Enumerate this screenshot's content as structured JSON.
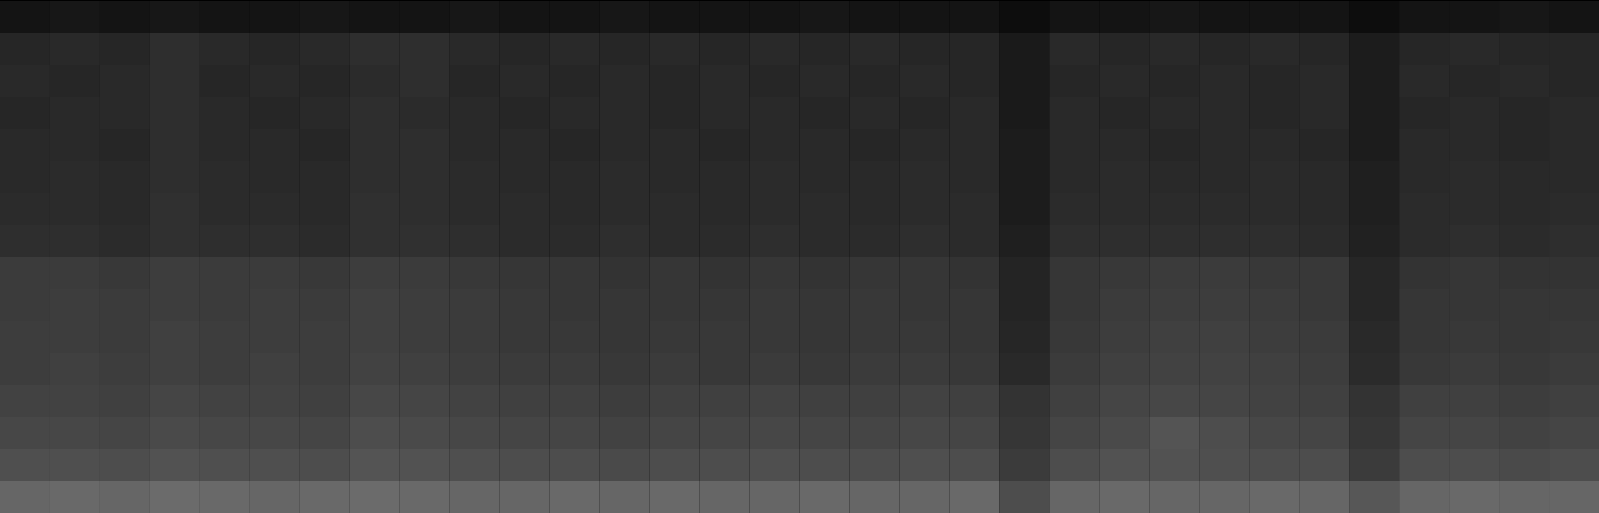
{
  "chart_data": {
    "type": "heatmap",
    "tick_labels": false,
    "zlim": [
      0,
      1
    ],
    "z": [
      [
        0.08,
        0.09,
        0.08,
        0.09,
        0.08,
        0.08,
        0.09,
        0.08,
        0.08,
        0.09,
        0.08,
        0.08,
        0.09,
        0.08,
        0.08,
        0.08,
        0.09,
        0.08,
        0.08,
        0.08,
        0.05,
        0.08,
        0.08,
        0.09,
        0.08,
        0.08,
        0.08,
        0.05,
        0.08,
        0.08,
        0.09,
        0.08
      ],
      [
        0.15,
        0.16,
        0.15,
        0.18,
        0.16,
        0.15,
        0.16,
        0.18,
        0.18,
        0.16,
        0.15,
        0.16,
        0.15,
        0.16,
        0.15,
        0.16,
        0.15,
        0.16,
        0.15,
        0.15,
        0.1,
        0.16,
        0.15,
        0.16,
        0.15,
        0.16,
        0.15,
        0.11,
        0.15,
        0.16,
        0.15,
        0.15
      ],
      [
        0.16,
        0.15,
        0.16,
        0.18,
        0.15,
        0.16,
        0.15,
        0.17,
        0.18,
        0.15,
        0.16,
        0.15,
        0.16,
        0.15,
        0.16,
        0.15,
        0.16,
        0.15,
        0.16,
        0.15,
        0.1,
        0.15,
        0.16,
        0.15,
        0.16,
        0.15,
        0.16,
        0.11,
        0.16,
        0.15,
        0.16,
        0.15
      ],
      [
        0.15,
        0.16,
        0.16,
        0.18,
        0.16,
        0.15,
        0.16,
        0.18,
        0.17,
        0.16,
        0.15,
        0.16,
        0.16,
        0.15,
        0.16,
        0.16,
        0.15,
        0.16,
        0.15,
        0.16,
        0.1,
        0.16,
        0.15,
        0.16,
        0.16,
        0.15,
        0.16,
        0.11,
        0.15,
        0.16,
        0.15,
        0.16
      ],
      [
        0.16,
        0.16,
        0.15,
        0.18,
        0.16,
        0.16,
        0.15,
        0.18,
        0.18,
        0.16,
        0.16,
        0.15,
        0.16,
        0.16,
        0.15,
        0.16,
        0.16,
        0.15,
        0.16,
        0.16,
        0.11,
        0.16,
        0.16,
        0.15,
        0.16,
        0.16,
        0.15,
        0.11,
        0.16,
        0.16,
        0.15,
        0.16
      ],
      [
        0.16,
        0.17,
        0.16,
        0.18,
        0.17,
        0.16,
        0.16,
        0.18,
        0.18,
        0.17,
        0.16,
        0.16,
        0.17,
        0.16,
        0.16,
        0.17,
        0.16,
        0.16,
        0.17,
        0.16,
        0.11,
        0.16,
        0.17,
        0.16,
        0.16,
        0.17,
        0.16,
        0.12,
        0.16,
        0.17,
        0.16,
        0.16
      ],
      [
        0.17,
        0.17,
        0.16,
        0.19,
        0.17,
        0.17,
        0.16,
        0.19,
        0.18,
        0.17,
        0.17,
        0.16,
        0.17,
        0.17,
        0.16,
        0.17,
        0.17,
        0.16,
        0.17,
        0.17,
        0.11,
        0.17,
        0.17,
        0.17,
        0.17,
        0.17,
        0.16,
        0.12,
        0.17,
        0.17,
        0.16,
        0.17
      ],
      [
        0.18,
        0.18,
        0.17,
        0.19,
        0.18,
        0.18,
        0.17,
        0.19,
        0.19,
        0.18,
        0.17,
        0.17,
        0.18,
        0.17,
        0.17,
        0.18,
        0.17,
        0.17,
        0.18,
        0.17,
        0.12,
        0.18,
        0.18,
        0.18,
        0.18,
        0.18,
        0.17,
        0.13,
        0.17,
        0.18,
        0.17,
        0.18
      ],
      [
        0.23,
        0.23,
        0.22,
        0.24,
        0.23,
        0.23,
        0.22,
        0.24,
        0.23,
        0.22,
        0.21,
        0.21,
        0.2,
        0.21,
        0.2,
        0.21,
        0.2,
        0.21,
        0.21,
        0.2,
        0.14,
        0.21,
        0.22,
        0.23,
        0.23,
        0.22,
        0.22,
        0.15,
        0.2,
        0.21,
        0.2,
        0.2
      ],
      [
        0.23,
        0.24,
        0.23,
        0.24,
        0.23,
        0.24,
        0.23,
        0.25,
        0.24,
        0.23,
        0.22,
        0.21,
        0.21,
        0.21,
        0.21,
        0.22,
        0.21,
        0.22,
        0.21,
        0.21,
        0.14,
        0.21,
        0.23,
        0.24,
        0.24,
        0.23,
        0.22,
        0.15,
        0.21,
        0.21,
        0.21,
        0.21
      ],
      [
        0.24,
        0.24,
        0.23,
        0.25,
        0.24,
        0.24,
        0.24,
        0.25,
        0.24,
        0.23,
        0.22,
        0.22,
        0.21,
        0.22,
        0.22,
        0.22,
        0.21,
        0.22,
        0.22,
        0.21,
        0.15,
        0.22,
        0.24,
        0.25,
        0.25,
        0.24,
        0.23,
        0.16,
        0.21,
        0.22,
        0.21,
        0.22
      ],
      [
        0.24,
        0.25,
        0.24,
        0.25,
        0.24,
        0.25,
        0.24,
        0.26,
        0.25,
        0.24,
        0.23,
        0.23,
        0.22,
        0.23,
        0.22,
        0.23,
        0.22,
        0.23,
        0.23,
        0.22,
        0.16,
        0.23,
        0.25,
        0.26,
        0.26,
        0.25,
        0.24,
        0.17,
        0.22,
        0.23,
        0.22,
        0.23
      ],
      [
        0.26,
        0.26,
        0.25,
        0.27,
        0.26,
        0.26,
        0.25,
        0.28,
        0.27,
        0.26,
        0.25,
        0.25,
        0.24,
        0.25,
        0.25,
        0.26,
        0.25,
        0.25,
        0.26,
        0.25,
        0.2,
        0.25,
        0.27,
        0.28,
        0.27,
        0.26,
        0.25,
        0.2,
        0.25,
        0.25,
        0.24,
        0.25
      ],
      [
        0.28,
        0.28,
        0.27,
        0.29,
        0.28,
        0.28,
        0.27,
        0.3,
        0.29,
        0.28,
        0.27,
        0.27,
        0.26,
        0.27,
        0.27,
        0.28,
        0.27,
        0.27,
        0.28,
        0.27,
        0.21,
        0.27,
        0.29,
        0.33,
        0.3,
        0.28,
        0.27,
        0.21,
        0.27,
        0.27,
        0.26,
        0.27
      ],
      [
        0.31,
        0.31,
        0.3,
        0.32,
        0.31,
        0.31,
        0.3,
        0.33,
        0.32,
        0.31,
        0.3,
        0.3,
        0.29,
        0.3,
        0.3,
        0.31,
        0.3,
        0.3,
        0.31,
        0.3,
        0.23,
        0.3,
        0.32,
        0.32,
        0.31,
        0.3,
        0.3,
        0.23,
        0.3,
        0.3,
        0.29,
        0.3
      ],
      [
        0.4,
        0.41,
        0.4,
        0.42,
        0.41,
        0.4,
        0.41,
        0.42,
        0.41,
        0.4,
        0.4,
        0.41,
        0.4,
        0.41,
        0.4,
        0.4,
        0.41,
        0.4,
        0.4,
        0.41,
        0.3,
        0.4,
        0.41,
        0.4,
        0.4,
        0.41,
        0.4,
        0.34,
        0.4,
        0.41,
        0.4,
        0.4
      ]
    ]
  }
}
